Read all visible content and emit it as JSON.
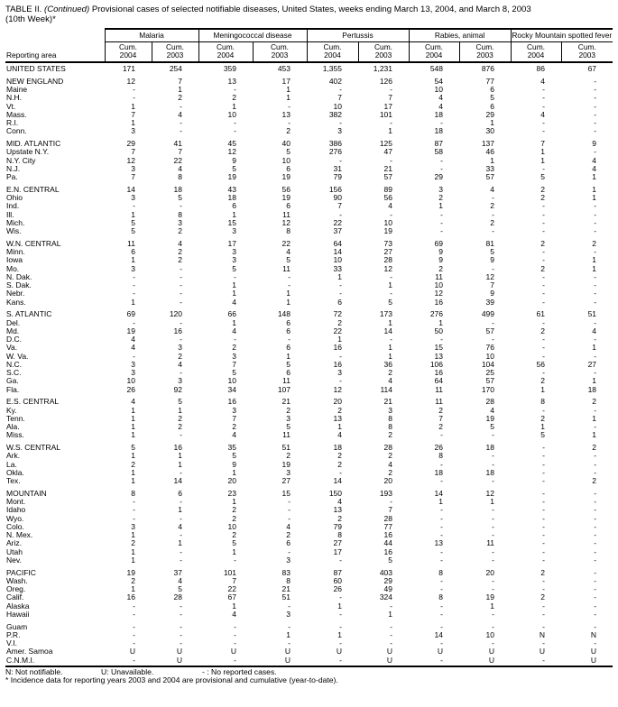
{
  "title": {
    "part1": "TABLE II. ",
    "continued": "(Continued)",
    "part2": " Provisional cases of selected notifiable diseases, United States, weeks ending March 13, 2004, and March 8, 2003",
    "line2": "(10th Week)*"
  },
  "table": {
    "area_header": "Reporting area",
    "cum_label": "Cum.",
    "years": [
      "2004",
      "2003"
    ],
    "groups": [
      {
        "label": "Malaria"
      },
      {
        "label": "Meningococcal disease"
      },
      {
        "label": "Pertussis"
      },
      {
        "label": "Rabies, animal"
      },
      {
        "label": "Rocky Mountain spotted fever"
      }
    ],
    "rows": [
      {
        "area": "UNITED STATES",
        "gap_before": false,
        "values": [
          "171",
          "254",
          "359",
          "453",
          "1,355",
          "1,231",
          "548",
          "876",
          "86",
          "67"
        ]
      },
      {
        "area": "NEW ENGLAND",
        "gap_before": true,
        "values": [
          "12",
          "7",
          "13",
          "17",
          "402",
          "126",
          "54",
          "77",
          "4",
          "-"
        ]
      },
      {
        "area": "Maine",
        "gap_before": false,
        "values": [
          "-",
          "1",
          "-",
          "1",
          "-",
          "-",
          "10",
          "6",
          "-",
          "-"
        ]
      },
      {
        "area": "N.H.",
        "gap_before": false,
        "values": [
          "-",
          "2",
          "2",
          "1",
          "7",
          "7",
          "4",
          "5",
          "-",
          "-"
        ]
      },
      {
        "area": "Vt.",
        "gap_before": false,
        "values": [
          "1",
          "-",
          "1",
          "-",
          "10",
          "17",
          "4",
          "6",
          "-",
          "-"
        ]
      },
      {
        "area": "Mass.",
        "gap_before": false,
        "values": [
          "7",
          "4",
          "10",
          "13",
          "382",
          "101",
          "18",
          "29",
          "4",
          "-"
        ]
      },
      {
        "area": "R.I.",
        "gap_before": false,
        "values": [
          "1",
          "-",
          "-",
          "-",
          "-",
          "-",
          "-",
          "1",
          "-",
          "-"
        ]
      },
      {
        "area": "Conn.",
        "gap_before": false,
        "values": [
          "3",
          "-",
          "-",
          "2",
          "3",
          "1",
          "18",
          "30",
          "-",
          "-"
        ]
      },
      {
        "area": "MID. ATLANTIC",
        "gap_before": true,
        "values": [
          "29",
          "41",
          "45",
          "40",
          "386",
          "125",
          "87",
          "137",
          "7",
          "9"
        ]
      },
      {
        "area": "Upstate N.Y.",
        "gap_before": false,
        "values": [
          "7",
          "7",
          "12",
          "5",
          "276",
          "47",
          "58",
          "46",
          "1",
          "-"
        ]
      },
      {
        "area": "N.Y. City",
        "gap_before": false,
        "values": [
          "12",
          "22",
          "9",
          "10",
          "-",
          "-",
          "-",
          "1",
          "1",
          "4"
        ]
      },
      {
        "area": "N.J.",
        "gap_before": false,
        "values": [
          "3",
          "4",
          "5",
          "6",
          "31",
          "21",
          "-",
          "33",
          "-",
          "4"
        ]
      },
      {
        "area": "Pa.",
        "gap_before": false,
        "values": [
          "7",
          "8",
          "19",
          "19",
          "79",
          "57",
          "29",
          "57",
          "5",
          "1"
        ]
      },
      {
        "area": "E.N. CENTRAL",
        "gap_before": true,
        "values": [
          "14",
          "18",
          "43",
          "56",
          "156",
          "89",
          "3",
          "4",
          "2",
          "1"
        ]
      },
      {
        "area": "Ohio",
        "gap_before": false,
        "values": [
          "3",
          "5",
          "18",
          "19",
          "90",
          "56",
          "2",
          "-",
          "2",
          "1"
        ]
      },
      {
        "area": "Ind.",
        "gap_before": false,
        "values": [
          "-",
          "-",
          "6",
          "6",
          "7",
          "4",
          "1",
          "2",
          "-",
          "-"
        ]
      },
      {
        "area": "Ill.",
        "gap_before": false,
        "values": [
          "1",
          "8",
          "1",
          "11",
          "-",
          "-",
          "-",
          "-",
          "-",
          "-"
        ]
      },
      {
        "area": "Mich.",
        "gap_before": false,
        "values": [
          "5",
          "3",
          "15",
          "12",
          "22",
          "10",
          "-",
          "2",
          "-",
          "-"
        ]
      },
      {
        "area": "Wis.",
        "gap_before": false,
        "values": [
          "5",
          "2",
          "3",
          "8",
          "37",
          "19",
          "-",
          "-",
          "-",
          "-"
        ]
      },
      {
        "area": "W.N. CENTRAL",
        "gap_before": true,
        "values": [
          "11",
          "4",
          "17",
          "22",
          "64",
          "73",
          "69",
          "81",
          "2",
          "2"
        ]
      },
      {
        "area": "Minn.",
        "gap_before": false,
        "values": [
          "6",
          "2",
          "3",
          "4",
          "14",
          "27",
          "9",
          "5",
          "-",
          "-"
        ]
      },
      {
        "area": "Iowa",
        "gap_before": false,
        "values": [
          "1",
          "2",
          "3",
          "5",
          "10",
          "28",
          "9",
          "9",
          "-",
          "1"
        ]
      },
      {
        "area": "Mo.",
        "gap_before": false,
        "values": [
          "3",
          "-",
          "5",
          "11",
          "33",
          "12",
          "2",
          "-",
          "2",
          "1"
        ]
      },
      {
        "area": "N. Dak.",
        "gap_before": false,
        "values": [
          "-",
          "-",
          "-",
          "-",
          "1",
          "-",
          "11",
          "12",
          "-",
          "-"
        ]
      },
      {
        "area": "S. Dak.",
        "gap_before": false,
        "values": [
          "-",
          "-",
          "1",
          "-",
          "-",
          "1",
          "10",
          "7",
          "-",
          "-"
        ]
      },
      {
        "area": "Nebr.",
        "gap_before": false,
        "values": [
          "-",
          "-",
          "1",
          "1",
          "-",
          "-",
          "12",
          "9",
          "-",
          "-"
        ]
      },
      {
        "area": "Kans.",
        "gap_before": false,
        "values": [
          "1",
          "-",
          "4",
          "1",
          "6",
          "5",
          "16",
          "39",
          "-",
          "-"
        ]
      },
      {
        "area": "S. ATLANTIC",
        "gap_before": true,
        "values": [
          "69",
          "120",
          "66",
          "148",
          "72",
          "173",
          "276",
          "499",
          "61",
          "51"
        ]
      },
      {
        "area": "Del.",
        "gap_before": false,
        "values": [
          "-",
          "-",
          "1",
          "6",
          "2",
          "1",
          "1",
          "-",
          "-",
          "-"
        ]
      },
      {
        "area": "Md.",
        "gap_before": false,
        "values": [
          "19",
          "16",
          "4",
          "6",
          "22",
          "14",
          "50",
          "57",
          "2",
          "4"
        ]
      },
      {
        "area": "D.C.",
        "gap_before": false,
        "values": [
          "4",
          "-",
          "-",
          "-",
          "1",
          "-",
          "-",
          "-",
          "-",
          "-"
        ]
      },
      {
        "area": "Va.",
        "gap_before": false,
        "values": [
          "4",
          "3",
          "2",
          "6",
          "16",
          "1",
          "15",
          "76",
          "-",
          "1"
        ]
      },
      {
        "area": "W. Va.",
        "gap_before": false,
        "values": [
          "-",
          "2",
          "3",
          "1",
          "-",
          "1",
          "13",
          "10",
          "-",
          "-"
        ]
      },
      {
        "area": "N.C.",
        "gap_before": false,
        "values": [
          "3",
          "4",
          "7",
          "5",
          "16",
          "36",
          "106",
          "104",
          "56",
          "27"
        ]
      },
      {
        "area": "S.C.",
        "gap_before": false,
        "values": [
          "3",
          "-",
          "5",
          "6",
          "3",
          "2",
          "16",
          "25",
          "-",
          "-"
        ]
      },
      {
        "area": "Ga.",
        "gap_before": false,
        "values": [
          "10",
          "3",
          "10",
          "11",
          "-",
          "4",
          "64",
          "57",
          "2",
          "1"
        ]
      },
      {
        "area": "Fla.",
        "gap_before": false,
        "values": [
          "26",
          "92",
          "34",
          "107",
          "12",
          "114",
          "11",
          "170",
          "1",
          "18"
        ]
      },
      {
        "area": "E.S. CENTRAL",
        "gap_before": true,
        "values": [
          "4",
          "5",
          "16",
          "21",
          "20",
          "21",
          "11",
          "28",
          "8",
          "2"
        ]
      },
      {
        "area": "Ky.",
        "gap_before": false,
        "values": [
          "1",
          "1",
          "3",
          "2",
          "2",
          "3",
          "2",
          "4",
          "-",
          "-"
        ]
      },
      {
        "area": "Tenn.",
        "gap_before": false,
        "values": [
          "1",
          "2",
          "7",
          "3",
          "13",
          "8",
          "7",
          "19",
          "2",
          "1"
        ]
      },
      {
        "area": "Ala.",
        "gap_before": false,
        "values": [
          "1",
          "2",
          "2",
          "5",
          "1",
          "8",
          "2",
          "5",
          "1",
          "-"
        ]
      },
      {
        "area": "Miss.",
        "gap_before": false,
        "values": [
          "1",
          "-",
          "4",
          "11",
          "4",
          "2",
          "-",
          "-",
          "5",
          "1"
        ]
      },
      {
        "area": "W.S. CENTRAL",
        "gap_before": true,
        "values": [
          "5",
          "16",
          "35",
          "51",
          "18",
          "28",
          "26",
          "18",
          "-",
          "2"
        ]
      },
      {
        "area": "Ark.",
        "gap_before": false,
        "values": [
          "1",
          "1",
          "5",
          "2",
          "2",
          "2",
          "8",
          "-",
          "-",
          "-"
        ]
      },
      {
        "area": "La.",
        "gap_before": false,
        "values": [
          "2",
          "1",
          "9",
          "19",
          "2",
          "4",
          "-",
          "-",
          "-",
          "-"
        ]
      },
      {
        "area": "Okla.",
        "gap_before": false,
        "values": [
          "1",
          "-",
          "1",
          "3",
          "-",
          "2",
          "18",
          "18",
          "-",
          "-"
        ]
      },
      {
        "area": "Tex.",
        "gap_before": false,
        "values": [
          "1",
          "14",
          "20",
          "27",
          "14",
          "20",
          "-",
          "-",
          "-",
          "2"
        ]
      },
      {
        "area": "MOUNTAIN",
        "gap_before": true,
        "values": [
          "8",
          "6",
          "23",
          "15",
          "150",
          "193",
          "14",
          "12",
          "-",
          "-"
        ]
      },
      {
        "area": "Mont.",
        "gap_before": false,
        "values": [
          "-",
          "-",
          "1",
          "-",
          "4",
          "-",
          "1",
          "1",
          "-",
          "-"
        ]
      },
      {
        "area": "Idaho",
        "gap_before": false,
        "values": [
          "-",
          "1",
          "2",
          "-",
          "13",
          "7",
          "-",
          "-",
          "-",
          "-"
        ]
      },
      {
        "area": "Wyo.",
        "gap_before": false,
        "values": [
          "-",
          "-",
          "2",
          "-",
          "2",
          "28",
          "-",
          "-",
          "-",
          "-"
        ]
      },
      {
        "area": "Colo.",
        "gap_before": false,
        "values": [
          "3",
          "4",
          "10",
          "4",
          "79",
          "77",
          "-",
          "-",
          "-",
          "-"
        ]
      },
      {
        "area": "N. Mex.",
        "gap_before": false,
        "values": [
          "1",
          "-",
          "2",
          "2",
          "8",
          "16",
          "-",
          "-",
          "-",
          "-"
        ]
      },
      {
        "area": "Ariz.",
        "gap_before": false,
        "values": [
          "2",
          "1",
          "5",
          "6",
          "27",
          "44",
          "13",
          "11",
          "-",
          "-"
        ]
      },
      {
        "area": "Utah",
        "gap_before": false,
        "values": [
          "1",
          "-",
          "1",
          "-",
          "17",
          "16",
          "-",
          "-",
          "-",
          "-"
        ]
      },
      {
        "area": "Nev.",
        "gap_before": false,
        "values": [
          "1",
          "-",
          "-",
          "3",
          "-",
          "5",
          "-",
          "-",
          "-",
          "-"
        ]
      },
      {
        "area": "PACIFIC",
        "gap_before": true,
        "values": [
          "19",
          "37",
          "101",
          "83",
          "87",
          "403",
          "8",
          "20",
          "2",
          "-"
        ]
      },
      {
        "area": "Wash.",
        "gap_before": false,
        "values": [
          "2",
          "4",
          "7",
          "8",
          "60",
          "29",
          "-",
          "-",
          "-",
          "-"
        ]
      },
      {
        "area": "Oreg.",
        "gap_before": false,
        "values": [
          "1",
          "5",
          "22",
          "21",
          "26",
          "49",
          "-",
          "-",
          "-",
          "-"
        ]
      },
      {
        "area": "Calif.",
        "gap_before": false,
        "values": [
          "16",
          "28",
          "67",
          "51",
          "-",
          "324",
          "8",
          "19",
          "2",
          "-"
        ]
      },
      {
        "area": "Alaska",
        "gap_before": false,
        "values": [
          "-",
          "-",
          "1",
          "-",
          "1",
          "-",
          "-",
          "1",
          "-",
          "-"
        ]
      },
      {
        "area": "Hawaii",
        "gap_before": false,
        "values": [
          "-",
          "-",
          "4",
          "3",
          "-",
          "1",
          "-",
          "-",
          "-",
          "-"
        ]
      },
      {
        "area": "Guam",
        "gap_before": true,
        "values": [
          "-",
          "-",
          "-",
          "-",
          "-",
          "-",
          "-",
          "-",
          "-",
          "-"
        ]
      },
      {
        "area": "P.R.",
        "gap_before": false,
        "values": [
          "-",
          "-",
          "-",
          "1",
          "1",
          "-",
          "14",
          "10",
          "N",
          "N"
        ]
      },
      {
        "area": "V.I.",
        "gap_before": false,
        "values": [
          "-",
          "-",
          "-",
          "-",
          "-",
          "-",
          "-",
          "-",
          "-",
          "-"
        ]
      },
      {
        "area": "Amer. Samoa",
        "gap_before": false,
        "values": [
          "U",
          "U",
          "U",
          "U",
          "U",
          "U",
          "U",
          "U",
          "U",
          "U"
        ]
      },
      {
        "area": "C.N.M.I.",
        "gap_before": false,
        "values": [
          "-",
          "U",
          "-",
          "U",
          "-",
          "U",
          "-",
          "U",
          "-",
          "U"
        ]
      }
    ]
  },
  "footnotes": {
    "legend_n": "N: Not notifiable.",
    "legend_u": "U: Unavailable.",
    "legend_dash": "- : No reported cases.",
    "incidence_note": "* Incidence data for reporting years 2003 and 2004 are provisional and cumulative (year-to-date)."
  }
}
